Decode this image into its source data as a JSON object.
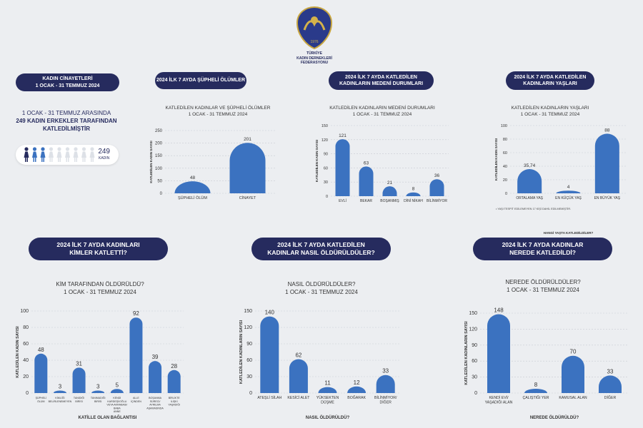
{
  "logo": {
    "year": "1976",
    "org": [
      "TÜRKİYE",
      "KADIN DERNEKLERİ",
      "FEDERASYONU"
    ]
  },
  "summary": {
    "pill": [
      "KADIN CİNAYETLERİ",
      "1 OCAK - 31 TEMMUZ 2024"
    ],
    "text": [
      "1 OCAK - 31 TEMMUZ ARASINDA",
      "249 KADIN ERKEKLER TARAFINDAN",
      "KATLEDİLMİŞTİR"
    ],
    "count": "249",
    "count_label": "KADIN"
  },
  "colors": {
    "bar": "#3b72c0",
    "pill": "#262b5e",
    "grid": "#c8ccd4",
    "dark_figure": "#262b5e",
    "blue_figure": "#3b72c0",
    "light_figure": "#dde1e7"
  },
  "chart_data": [
    {
      "id": "suspicious",
      "type": "bar",
      "pill": [
        "2024 İLK 7 AYDA ŞÜPHELİ ÖLÜMLER"
      ],
      "subtitle": [
        "KATLEDİLEN KADINLAR VE ŞÜPHELİ ÖLÜMLER",
        "1 OCAK - 31 TEMMUZ 2024"
      ],
      "ylabel": "KATLEDİLEN KADIN SAYISI",
      "xlabel": "",
      "ylim": [
        0,
        250
      ],
      "yticks": [
        0,
        50,
        100,
        150,
        200,
        250
      ],
      "grid": true,
      "categories": [
        [
          "ŞÜPHELİ ÖLÜM"
        ],
        [
          "CİNAYET"
        ]
      ],
      "values": [
        48,
        201
      ]
    },
    {
      "id": "marital",
      "type": "bar",
      "pill": [
        "2024 İLK 7 AYDA KATLEDİLEN",
        "KADINLARIN MEDENİ DURUMLARI"
      ],
      "subtitle": [
        "KATLEDİLEN KADINLARIN MEDENİ DURUMLARI",
        "1 OCAK - 31 TEMMUZ 2024"
      ],
      "ylabel": "KATLEDİLEN KADIN SAYISI",
      "xlabel": "",
      "ylim": [
        0,
        150
      ],
      "yticks": [
        0,
        30,
        60,
        90,
        120,
        150
      ],
      "grid": true,
      "categories": [
        [
          "EVLİ"
        ],
        [
          "BEKAR"
        ],
        [
          "BOŞANMIŞ"
        ],
        [
          "DİNİ NİKAH"
        ],
        [
          "BİLİNMİYOR"
        ]
      ],
      "values": [
        121,
        63,
        21,
        8,
        36
      ]
    },
    {
      "id": "ages",
      "type": "bar",
      "pill": [
        "2024 İLK 7 AYDA  KATLEDİLEN",
        "KADINLARIN YAŞLARI"
      ],
      "subtitle": [
        "KATLEDİLEN KADINLARIN YAŞLARI",
        "1 OCAK - 31 TEMMUZ 2024"
      ],
      "ylabel": "KATLEDİLEN KADIN SAYISI",
      "xlabel": "HANGİ YAŞTA KATLEDİLDİLER?",
      "ylim": [
        0,
        100
      ],
      "yticks": [
        0,
        20,
        40,
        60,
        80,
        100
      ],
      "grid": true,
      "categories": [
        [
          "ORTALAMA YAŞ"
        ],
        [
          "EN KÜÇÜK YAŞ"
        ],
        [
          "EN BÜYÜK YAŞ"
        ]
      ],
      "values": [
        35.74,
        4,
        88
      ],
      "value_labels": [
        "35,74",
        "4",
        "88"
      ],
      "note": "• YAŞI TESPİT EDİLEMEYEN 17 KİŞİ DAHİL EDİLMEMİŞTİR."
    },
    {
      "id": "who",
      "type": "bar",
      "pill": [
        "2024 İLK 7 AYDA KADINLARI",
        "KİMLER KATLETTİ?"
      ],
      "subtitle": [
        "KİM TARAFINDAN ÖLDÜRÜLDÜ?",
        "1 OCAK - 31 TEMMUZ 2024"
      ],
      "ylabel": "KATLEDİLEN KADIN SAYISI",
      "xlabel": "KATİLLE OLAN BAĞLANTISI",
      "ylim": [
        0,
        100
      ],
      "yticks": [
        0,
        20,
        40,
        60,
        80,
        100
      ],
      "grid": true,
      "categories": [
        [
          "ŞÜPHELİ",
          "ÖLÜM"
        ],
        [
          "KİMLİĞİ",
          "BELİRLENEMEYEN"
        ],
        [
          "TANIDIĞI",
          "BİRİSİ"
        ],
        [
          "TANIMADIĞI",
          "BİRİSİ"
        ],
        [
          "KENDİ",
          "KARDEŞİ/OĞLU",
          "VEYA AKRABASI/",
          "BABA",
          "ANNE"
        ],
        [
          "ALLE",
          "İÇİNDEN"
        ],
        [
          "BOŞANMA",
          "SÜRECİ/",
          "AYRILMA",
          "AŞAMASINDA"
        ],
        [
          "BİRLİKTE",
          "İLİŞKİ",
          "YAŞADIĞI"
        ]
      ],
      "values": [
        48,
        3,
        31,
        3,
        5,
        92,
        39,
        28
      ]
    },
    {
      "id": "how",
      "type": "bar",
      "pill": [
        "2024 İLK 7 AYDA KATLEDİLEN",
        "KADINLAR NASIL ÖLDÜRÜLDÜLER?"
      ],
      "subtitle": [
        "NASIL ÖLDÜRÜLDÜLER?",
        "1 OCAK - 31 TEMMUZ 2024"
      ],
      "ylabel": "KATLEDİLEN KADINLARIN SAYISI",
      "xlabel": "NASIL ÖLDÜRÜLDÜ?",
      "ylim": [
        0,
        150
      ],
      "yticks": [
        0,
        30,
        60,
        90,
        120,
        150
      ],
      "grid": true,
      "categories": [
        [
          "ATEŞLİ SİLAH"
        ],
        [
          "KESİCİ ALET"
        ],
        [
          "YÜKSEKTEN",
          "DÜŞME"
        ],
        [
          "BOĞARAK"
        ],
        [
          "BİLİNMİYOR/",
          "DİĞER"
        ]
      ],
      "values": [
        140,
        62,
        11,
        12,
        33
      ]
    },
    {
      "id": "where",
      "type": "bar",
      "pill": [
        "2024 İLK 7 AYDA KADINLAR",
        "NEREDE KATLEDİLDİ?"
      ],
      "subtitle": [
        "NEREDE ÖLDÜRÜLDÜLER?",
        "1 OCAK - 31 TEMMUZ 2024"
      ],
      "ylabel": "KATLEDİLEN KADINLARIN SAYISI",
      "xlabel": "NEREDE ÖLDÜRÜLDÜ?",
      "ylim": [
        0,
        150
      ],
      "yticks": [
        0,
        30,
        60,
        90,
        120,
        150
      ],
      "grid": true,
      "categories": [
        [
          "KENDİ EVİ/",
          "YAŞADIĞI ALAN"
        ],
        [
          "ÇALIŞTIĞI YER"
        ],
        [
          "KAMUSAL ALAN"
        ],
        [
          "DİĞER"
        ]
      ],
      "values": [
        148,
        8,
        70,
        33
      ]
    }
  ]
}
